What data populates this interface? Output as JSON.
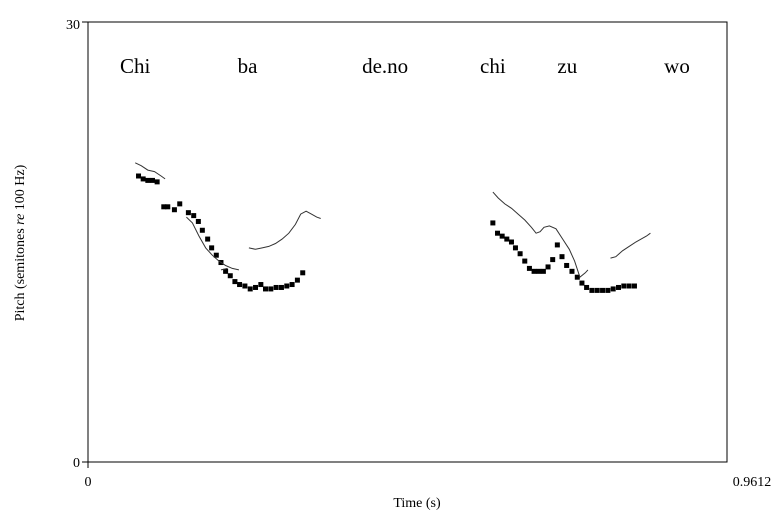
{
  "chart_data": {
    "type": "line",
    "xlabel": "Time (s)",
    "ylabel_parts": [
      "Pitch (semitones ",
      "re",
      " 100 Hz)"
    ],
    "xlim": [
      0,
      0.9612
    ],
    "ylim": [
      0,
      30
    ],
    "x_ticks": [
      "0",
      "0.9612"
    ],
    "y_ticks": [
      "0",
      "30"
    ],
    "grid": false,
    "syllables": [
      {
        "text": "Chi",
        "x": 0.071
      },
      {
        "text": "ba",
        "x": 0.24
      },
      {
        "text": "de.no",
        "x": 0.447
      },
      {
        "text": "chi",
        "x": 0.609
      },
      {
        "text": "zu",
        "x": 0.721
      },
      {
        "text": "wo",
        "x": 0.886
      }
    ],
    "series": [
      {
        "style": "dotted",
        "segments": [
          [
            [
              0.076,
              19.5
            ],
            [
              0.083,
              19.3
            ],
            [
              0.09,
              19.2
            ],
            [
              0.097,
              19.2
            ],
            [
              0.104,
              19.1
            ],
            [
              0.114,
              17.4
            ],
            [
              0.12,
              17.4
            ],
            [
              0.13,
              17.2
            ],
            [
              0.138,
              17.6
            ],
            [
              0.151,
              17.0
            ],
            [
              0.159,
              16.8
            ],
            [
              0.166,
              16.4
            ],
            [
              0.172,
              15.8
            ],
            [
              0.18,
              15.2
            ],
            [
              0.186,
              14.6
            ],
            [
              0.193,
              14.1
            ],
            [
              0.2,
              13.6
            ],
            [
              0.207,
              13.0
            ],
            [
              0.214,
              12.7
            ],
            [
              0.221,
              12.3
            ],
            [
              0.228,
              12.1
            ],
            [
              0.236,
              12.0
            ],
            [
              0.244,
              11.8
            ],
            [
              0.252,
              11.9
            ],
            [
              0.26,
              12.1
            ],
            [
              0.267,
              11.8
            ],
            [
              0.275,
              11.8
            ],
            [
              0.283,
              11.9
            ],
            [
              0.291,
              11.9
            ],
            [
              0.299,
              12.0
            ],
            [
              0.307,
              12.1
            ],
            [
              0.315,
              12.4
            ],
            [
              0.323,
              12.9
            ]
          ],
          [
            [
              0.609,
              16.3
            ],
            [
              0.616,
              15.6
            ],
            [
              0.623,
              15.4
            ],
            [
              0.63,
              15.2
            ],
            [
              0.637,
              15.0
            ],
            [
              0.643,
              14.6
            ],
            [
              0.65,
              14.2
            ],
            [
              0.657,
              13.7
            ],
            [
              0.664,
              13.2
            ],
            [
              0.671,
              13.0
            ],
            [
              0.678,
              13.0
            ],
            [
              0.685,
              13.0
            ],
            [
              0.692,
              13.3
            ],
            [
              0.699,
              13.8
            ],
            [
              0.706,
              14.8
            ],
            [
              0.713,
              14.0
            ],
            [
              0.72,
              13.4
            ],
            [
              0.728,
              13.0
            ],
            [
              0.736,
              12.6
            ],
            [
              0.743,
              12.2
            ],
            [
              0.75,
              11.9
            ],
            [
              0.758,
              11.7
            ],
            [
              0.766,
              11.7
            ],
            [
              0.774,
              11.7
            ],
            [
              0.782,
              11.7
            ],
            [
              0.79,
              11.8
            ],
            [
              0.798,
              11.9
            ],
            [
              0.806,
              12.0
            ],
            [
              0.814,
              12.0
            ],
            [
              0.822,
              12.0
            ]
          ]
        ]
      },
      {
        "style": "solid",
        "segments": [
          [
            [
              0.071,
              20.4
            ],
            [
              0.08,
              20.2
            ],
            [
              0.09,
              19.9
            ],
            [
              0.1,
              19.8
            ],
            [
              0.11,
              19.5
            ],
            [
              0.116,
              19.3
            ]
          ],
          [
            [
              0.148,
              16.7
            ],
            [
              0.157,
              16.3
            ],
            [
              0.167,
              15.4
            ],
            [
              0.177,
              14.6
            ],
            [
              0.187,
              14.1
            ],
            [
              0.197,
              13.7
            ],
            [
              0.207,
              13.4
            ],
            [
              0.217,
              13.2
            ],
            [
              0.227,
              13.1
            ]
          ],
          [
            [
              0.2,
              13.1
            ],
            [
              0.21,
              13.2
            ]
          ],
          [
            [
              0.242,
              14.6
            ],
            [
              0.252,
              14.5
            ],
            [
              0.262,
              14.6
            ],
            [
              0.272,
              14.7
            ],
            [
              0.282,
              14.9
            ],
            [
              0.292,
              15.2
            ],
            [
              0.302,
              15.6
            ],
            [
              0.312,
              16.2
            ],
            [
              0.32,
              16.9
            ],
            [
              0.328,
              17.1
            ],
            [
              0.336,
              16.9
            ],
            [
              0.344,
              16.7
            ],
            [
              0.35,
              16.6
            ]
          ],
          [
            [
              0.609,
              18.4
            ],
            [
              0.617,
              18.0
            ],
            [
              0.627,
              17.6
            ],
            [
              0.637,
              17.3
            ],
            [
              0.647,
              16.9
            ],
            [
              0.657,
              16.5
            ],
            [
              0.667,
              16.0
            ],
            [
              0.674,
              15.6
            ],
            [
              0.68,
              15.7
            ],
            [
              0.686,
              16.0
            ],
            [
              0.694,
              16.1
            ],
            [
              0.704,
              15.9
            ],
            [
              0.714,
              15.2
            ],
            [
              0.724,
              14.5
            ],
            [
              0.732,
              13.7
            ],
            [
              0.74,
              12.6
            ],
            [
              0.748,
              12.9
            ],
            [
              0.752,
              13.1
            ]
          ],
          [
            [
              0.786,
              13.9
            ],
            [
              0.794,
              14.0
            ],
            [
              0.804,
              14.4
            ],
            [
              0.814,
              14.7
            ],
            [
              0.824,
              15.0
            ],
            [
              0.832,
              15.2
            ],
            [
              0.84,
              15.4
            ],
            [
              0.846,
              15.6
            ]
          ]
        ]
      }
    ]
  }
}
